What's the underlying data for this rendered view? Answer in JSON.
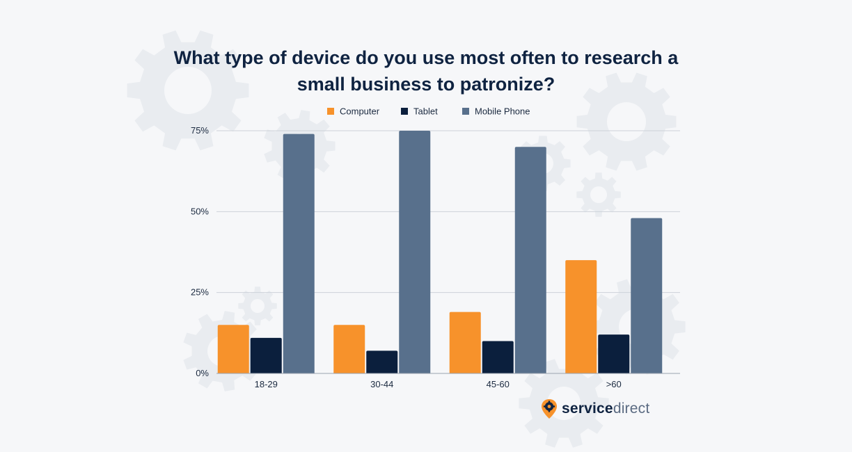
{
  "chart_data": {
    "type": "bar",
    "title_lines": [
      "What type of device do you use most often to research a",
      "small business to patronize?"
    ],
    "categories": [
      "18-29",
      "30-44",
      "45-60",
      ">60"
    ],
    "series": [
      {
        "name": "Computer",
        "color": "#f7922b",
        "values": [
          15,
          15,
          19,
          35
        ]
      },
      {
        "name": "Tablet",
        "color": "#0b1f3d",
        "values": [
          11,
          7,
          10,
          12
        ]
      },
      {
        "name": "Mobile Phone",
        "color": "#58708c",
        "values": [
          74,
          75,
          70,
          48
        ]
      }
    ],
    "ylim": [
      0,
      75
    ],
    "yticks": [
      {
        "value": 0,
        "label": "0%"
      },
      {
        "value": 25,
        "label": "25%"
      },
      {
        "value": 50,
        "label": "50%"
      },
      {
        "value": 75,
        "label": "75%"
      }
    ],
    "grid": true,
    "legend_position": "top-center"
  },
  "brand": {
    "name_bold": "service",
    "name_light": "direct",
    "logo_icon": "gear-pin-icon",
    "colors": {
      "pin": "#f7922b",
      "text": "#0f2341"
    }
  }
}
